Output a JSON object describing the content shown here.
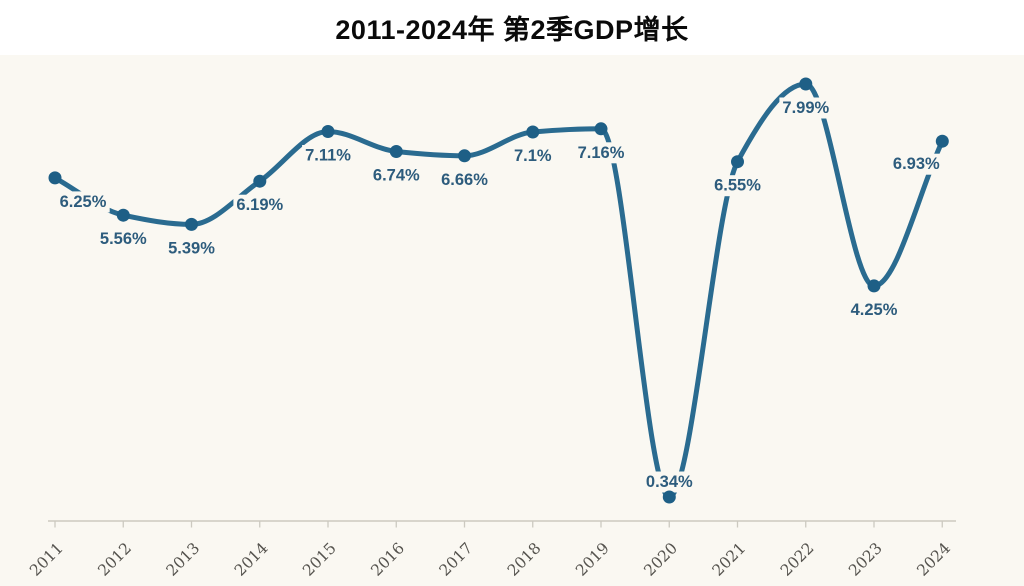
{
  "title": "2011-2024年 第2季GDP增长",
  "chart_data": {
    "type": "line",
    "title": "2011-2024年 第2季GDP增长",
    "categories": [
      "2011",
      "2012",
      "2013",
      "2014",
      "2015",
      "2016",
      "2017",
      "2018",
      "2019",
      "2020",
      "2021",
      "2022",
      "2023",
      "2024"
    ],
    "series": [
      {
        "name": "第2季GDP增长",
        "values": [
          6.25,
          5.56,
          5.39,
          6.19,
          7.11,
          6.74,
          6.66,
          7.1,
          7.16,
          0.34,
          6.55,
          7.99,
          4.25,
          6.93
        ]
      }
    ],
    "point_labels": [
      "6.25%",
      "5.56%",
      "5.39%",
      "6.19%",
      "7.11%",
      "6.74%",
      "6.66%",
      "7.1%",
      "7.16%",
      "0.34%",
      "6.55%",
      "7.99%",
      "4.25%",
      "6.93%"
    ],
    "xlabel": "",
    "ylabel": "",
    "ylim": [
      0,
      8.6
    ],
    "grid": false,
    "legend": false,
    "curve": "smooth-monotone",
    "y_axis_visible": false,
    "x_tick_rotation_deg": 45
  },
  "colors": {
    "chart_bg": "#FAF8F2",
    "line": "#2A6B90",
    "point": "#1E5F86",
    "value_label": "#2D5C7D",
    "axis": "#CCC9C0",
    "tick_label": "#55534E",
    "title": "#0A0A0A"
  }
}
